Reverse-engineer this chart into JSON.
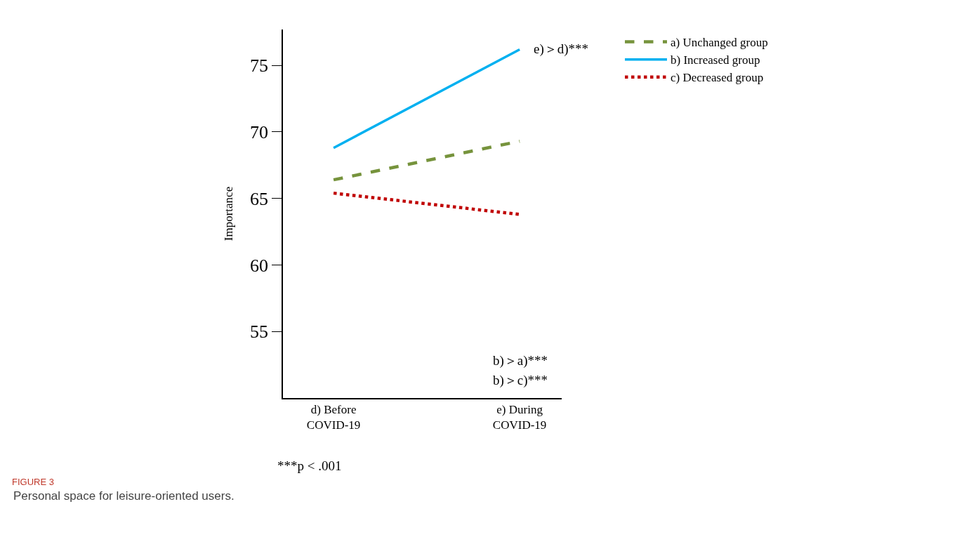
{
  "chart_data": {
    "type": "line",
    "title": "FIGURE 3",
    "subtitle": "Personal space for leisure-oriented users.",
    "ylabel": "Importance",
    "categories": [
      "d) Before\nCOVID-19",
      "e) During\nCOVID-19"
    ],
    "series": [
      {
        "name": "a) Unchanged group",
        "color": "#76933c",
        "values": [
          66.4,
          69.3
        ],
        "line_style": "dashed"
      },
      {
        "name": "b) Increased group",
        "color": "#00b0f0",
        "values": [
          68.8,
          76.2
        ],
        "line_style": "solid"
      },
      {
        "name": "c) Decreased group",
        "color": "#c00000",
        "values": [
          65.4,
          63.8
        ],
        "line_style": "dotted"
      }
    ],
    "ylim": [
      50,
      77.7
    ],
    "yticks": [
      55,
      60,
      65,
      70,
      75
    ],
    "legend": "top right",
    "marker": "none",
    "annotations": [
      {
        "text": "e)＞d)***",
        "x": "e) During\nCOVID-19",
        "y": 76.2
      },
      "b)＞a)***",
      "b)＞c)***",
      "***p < .001"
    ]
  }
}
